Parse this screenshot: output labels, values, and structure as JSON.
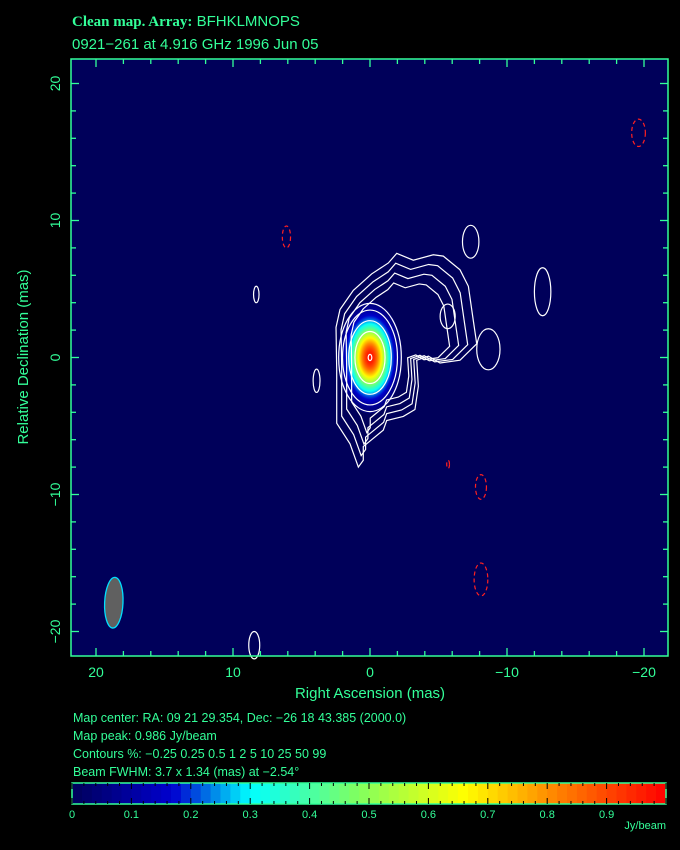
{
  "chart_data": {
    "type": "heatmap",
    "title_prefix": "Clean map.  Array:",
    "title_array": "BFHKLMNOPS",
    "subtitle": "0921−261 at 4.916 GHz 1996 Jun 05",
    "xlabel": "Right Ascension  (mas)",
    "ylabel": "Relative Declination  (mas)",
    "xlim": [
      21.8,
      -21.8
    ],
    "ylim": [
      -21.8,
      21.8
    ],
    "xticks": [
      20,
      10,
      0,
      -10,
      -20
    ],
    "xtick_labels": [
      "20",
      "10",
      "0",
      "−10",
      "−20"
    ],
    "yticks": [
      20,
      10,
      0,
      -10,
      -20
    ],
    "ytick_labels": [
      "20",
      "10",
      "0",
      "−10",
      "−20"
    ],
    "minor_tick_step": 2,
    "grid": false,
    "peak": {
      "x": 0,
      "y": 0,
      "value": 0.986
    },
    "core_fwhm_mas": [
      2.2,
      3.8
    ],
    "contour_levels_percent": [
      -0.25,
      0.25,
      0.5,
      1,
      2,
      5,
      10,
      25,
      50,
      99
    ],
    "extended_contour_0_25": [
      [
        -1.95,
        7.6
      ],
      [
        -1.34,
        6.9
      ],
      [
        -0.12,
        6.1
      ],
      [
        1.22,
        4.9
      ],
      [
        2.19,
        3.5
      ],
      [
        2.48,
        2.2
      ],
      [
        2.43,
        -0.9
      ],
      [
        2.43,
        -4.8
      ],
      [
        1.46,
        -6.3
      ],
      [
        0.85,
        -8.0
      ],
      [
        0.49,
        -7.5
      ],
      [
        0.49,
        -6.5
      ],
      [
        -0.12,
        -6.0
      ],
      [
        -0.97,
        -5.3
      ],
      [
        -1.22,
        -4.6
      ],
      [
        -2.43,
        -4.3
      ],
      [
        -3.28,
        -3.8
      ],
      [
        -3.53,
        -2.1
      ],
      [
        -3.41,
        -0.2
      ],
      [
        -4.26,
        0.1
      ],
      [
        -5.11,
        -0.4
      ],
      [
        -6.57,
        -0.2
      ],
      [
        -7.79,
        1.0
      ],
      [
        -7.54,
        2.7
      ],
      [
        -7.18,
        5.2
      ],
      [
        -6.57,
        6.4
      ],
      [
        -5.35,
        7.4
      ],
      [
        -4.62,
        7.5
      ],
      [
        -3.16,
        7.1
      ]
    ],
    "isolated_contours_positive": [
      {
        "x": -7.35,
        "y": 8.45,
        "a": 0.6,
        "b": 1.2
      },
      {
        "x": -12.6,
        "y": 4.8,
        "a": 0.6,
        "b": 1.75
      },
      {
        "x": -5.67,
        "y": 3.0,
        "a": 0.55,
        "b": 0.9
      },
      {
        "x": -8.64,
        "y": 0.6,
        "a": 0.85,
        "b": 1.5
      },
      {
        "x": 3.9,
        "y": -1.7,
        "a": 0.25,
        "b": 0.85
      },
      {
        "x": 8.3,
        "y": 4.6,
        "a": 0.2,
        "b": 0.6
      },
      {
        "x": 8.45,
        "y": -21.0,
        "a": 0.4,
        "b": 1.0
      }
    ],
    "isolated_contours_negative": [
      {
        "x": 6.1,
        "y": 8.8,
        "a": 0.3,
        "b": 0.8
      },
      {
        "x": -19.6,
        "y": 16.4,
        "a": 0.5,
        "b": 1.0
      },
      {
        "x": -8.1,
        "y": -9.45,
        "a": 0.4,
        "b": 0.9
      },
      {
        "x": -8.1,
        "y": -16.2,
        "a": 0.5,
        "b": 1.2
      },
      {
        "x": -5.7,
        "y": -7.8,
        "a": 0.1,
        "b": 0.3
      }
    ],
    "beam": {
      "x": 18.7,
      "y": -17.9,
      "major_mas": 3.7,
      "minor_mas": 1.34,
      "pa_deg": -2.54
    },
    "colorbar": {
      "range": [
        0,
        1
      ],
      "ticks": [
        0,
        0.1,
        0.2,
        0.3,
        0.4,
        0.5,
        0.6,
        0.7,
        0.8,
        0.9
      ],
      "tick_labels": [
        "0",
        "0.1",
        "0.2",
        "0.3",
        "0.4",
        "0.5",
        "0.6",
        "0.7",
        "0.8",
        "0.9"
      ],
      "unit": "Jy/beam"
    },
    "colormap": [
      [
        0,
        "#00005a"
      ],
      [
        0.17,
        "#0000d0"
      ],
      [
        0.3,
        "#00ffff"
      ],
      [
        0.48,
        "#80ff60"
      ],
      [
        0.66,
        "#ffff00"
      ],
      [
        0.82,
        "#ff8000"
      ],
      [
        1,
        "#ff0000"
      ]
    ]
  },
  "info": {
    "map_center": "Map center:  RA: 09 21 29.354,  Dec: −26 18 43.385 (2000.0)",
    "map_peak": "Map peak: 0.986 Jy/beam",
    "contours": "Contours %: −0.25 0.25 0.5 1 2 5 10 25 50 99",
    "beam": "Beam FWHM: 3.7 x 1.34 (mas) at −2.54°"
  },
  "colors": {
    "axis": "#33ff99",
    "background": "#00005a",
    "contour": "#ffffff",
    "negative_contour": "#ff2020",
    "beam_fill": "#606060",
    "beam_edge": "#00e0ff"
  }
}
